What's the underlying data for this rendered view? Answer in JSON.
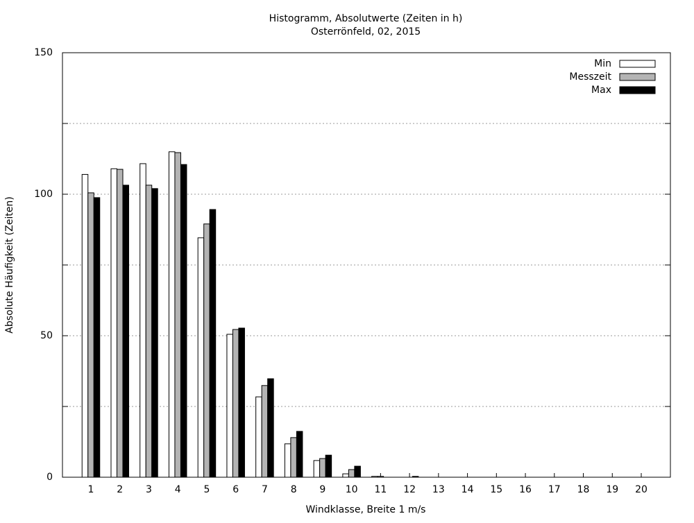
{
  "chart_data": {
    "type": "bar",
    "title": "Histogramm, Absolutwerte (Zeiten in h)",
    "subtitle": "Osterrönfeld, 02, 2015",
    "x_label": "Windklasse, Breite 1 m/s",
    "y_label": "Absolute Häufigkeit (Zeiten)",
    "categories": [
      "1",
      "2",
      "3",
      "4",
      "5",
      "6",
      "7",
      "8",
      "9",
      "10",
      "11",
      "12",
      "13",
      "14",
      "15",
      "16",
      "17",
      "18",
      "19",
      "20"
    ],
    "series": [
      {
        "name": "Min",
        "color": "#ffffff",
        "values": [
          107,
          109,
          110.8,
          115,
          84.6,
          50.5,
          28.4,
          11.8,
          5.9,
          1.2,
          0.3,
          0,
          0,
          0,
          0,
          0,
          0,
          0,
          0,
          0
        ]
      },
      {
        "name": "Messzeit",
        "color": "#b4b4b4",
        "values": [
          100.5,
          108.8,
          103.2,
          114.7,
          89.5,
          52.2,
          32.4,
          14,
          6.6,
          2.7,
          0.3,
          0,
          0,
          0,
          0,
          0,
          0,
          0,
          0,
          0
        ]
      },
      {
        "name": "Max",
        "color": "#000000",
        "values": [
          98.8,
          103.2,
          102,
          110.5,
          94.6,
          52.7,
          34.8,
          16.2,
          7.8,
          3.9,
          0,
          0.3,
          0,
          0,
          0,
          0,
          0,
          0,
          0,
          0
        ]
      }
    ],
    "ylim": [
      0,
      150
    ],
    "yticks": [
      0,
      50,
      100,
      150
    ],
    "y_minor_ticks": [
      25,
      75,
      125
    ],
    "grid": true,
    "legend": "top-right"
  }
}
